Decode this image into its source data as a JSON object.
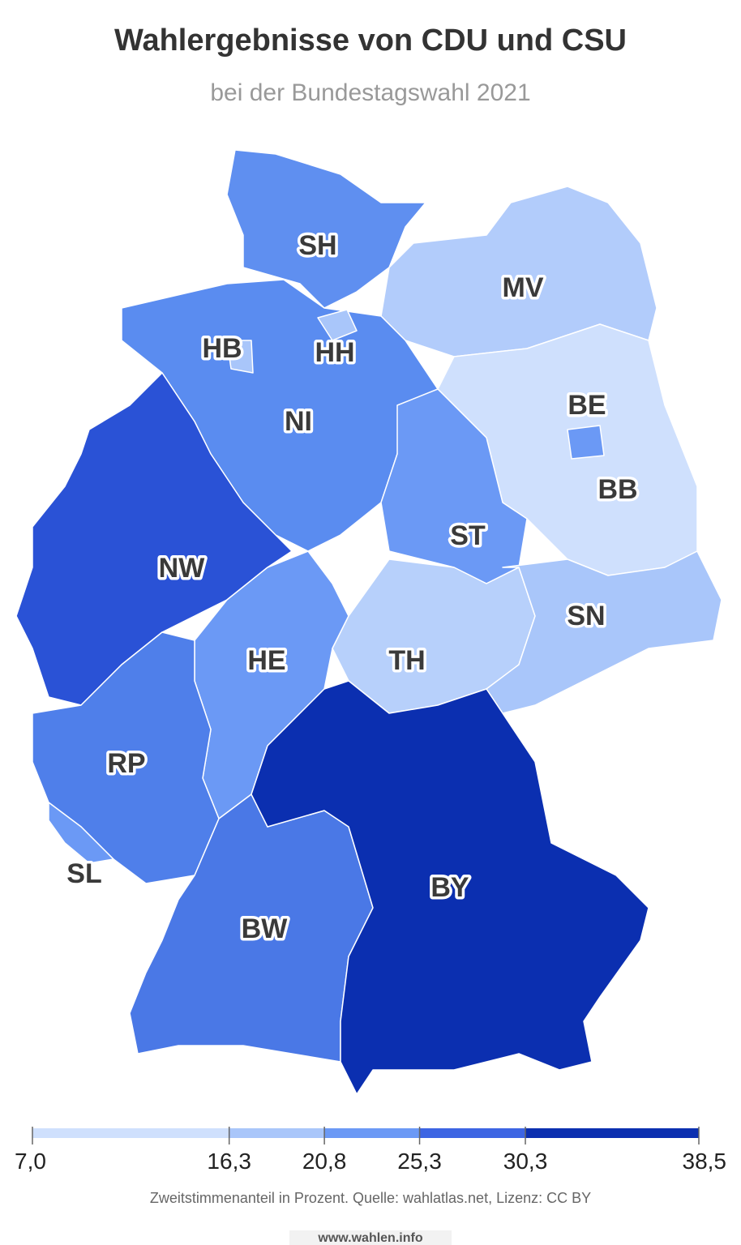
{
  "title": "Wahlergebnisse von CDU und CSU",
  "subtitle": "bei der Bundestagswahl 2021",
  "map": {
    "regions": [
      {
        "label": "SH",
        "color": "#5f8ff0"
      },
      {
        "label": "MV",
        "color": "#b2ccfb"
      },
      {
        "label": "NI",
        "color": "#5a8cf0"
      },
      {
        "label": "HH",
        "color": "#a9c6fa"
      },
      {
        "label": "HB",
        "color": "#a9c6fa"
      },
      {
        "label": "BB",
        "color": "#cfe0fd"
      },
      {
        "label": "BE",
        "color": "#6b99f5"
      },
      {
        "label": "ST",
        "color": "#6b99f5"
      },
      {
        "label": "NW",
        "color": "#2a52d6"
      },
      {
        "label": "HE",
        "color": "#6b99f5"
      },
      {
        "label": "TH",
        "color": "#b7d0fb"
      },
      {
        "label": "SN",
        "color": "#a9c6fa"
      },
      {
        "label": "RP",
        "color": "#4f7fea"
      },
      {
        "label": "SL",
        "color": "#6b99f5"
      },
      {
        "label": "BW",
        "color": "#4a78e6"
      },
      {
        "label": "BY",
        "color": "#0b2fb0"
      }
    ]
  },
  "legend": {
    "ticks": [
      {
        "value": 7.0,
        "label": "7,0"
      },
      {
        "value": 16.3,
        "label": "16,3"
      },
      {
        "value": 20.8,
        "label": "20,8"
      },
      {
        "value": 25.3,
        "label": "25,3"
      },
      {
        "value": 30.3,
        "label": "30,3"
      },
      {
        "value": 38.5,
        "label": "38,5"
      }
    ],
    "colors": [
      "#cfe0fd",
      "#a9c6fa",
      "#6b99f5",
      "#3d65e3",
      "#0b2fb0"
    ]
  },
  "caption": "Zweitstimmenanteil in Prozent. Quelle: wahlatlas.net, Lizenz: CC BY",
  "footer": "www.wahlen.info"
}
